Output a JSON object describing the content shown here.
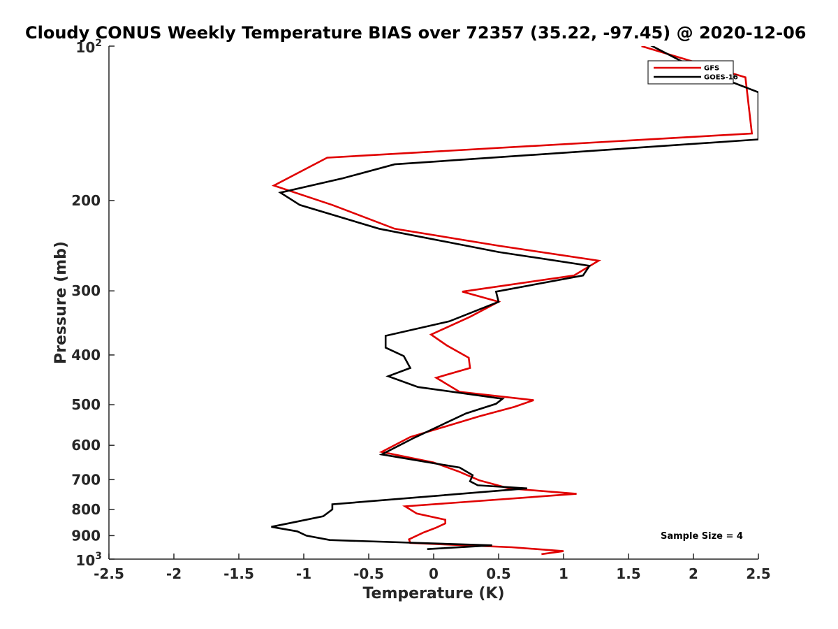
{
  "chart_data": {
    "type": "line",
    "title": "Cloudy CONUS Weekly Temperature BIAS over 72357 (35.22, -97.45) @ 2020-12-06",
    "xlabel": "Temperature (K)",
    "ylabel": "Pressure (mb)",
    "xlim": [
      -2.5,
      2.5
    ],
    "ylim": [
      100,
      1000
    ],
    "y_scale": "log",
    "y_reversed": true,
    "x_ticks": [
      "-2.5",
      "-2",
      "-1.5",
      "-1",
      "-0.5",
      "0",
      "0.5",
      "1",
      "1.5",
      "2",
      "2.5"
    ],
    "x_tick_values": [
      -2.5,
      -2,
      -1.5,
      -1,
      -0.5,
      0,
      0.5,
      1,
      1.5,
      2,
      2.5
    ],
    "y_ticks": [
      {
        "value": 200,
        "label": "200"
      },
      {
        "value": 300,
        "label": "300"
      },
      {
        "value": 400,
        "label": "400"
      },
      {
        "value": 500,
        "label": "500"
      },
      {
        "value": 600,
        "label": "600"
      },
      {
        "value": 700,
        "label": "700"
      },
      {
        "value": 800,
        "label": "800"
      },
      {
        "value": 900,
        "label": "900"
      }
    ],
    "y_pow_ticks": [
      {
        "value": 100,
        "base": "10",
        "exp": "2"
      },
      {
        "value": 1000,
        "base": "10",
        "exp": "3"
      }
    ],
    "grid": false,
    "legend_position": "top-right",
    "annotation": "Sample Size = 4",
    "series": [
      {
        "name": "GFS",
        "color": "#e00000",
        "points": [
          [
            1.6,
            100
          ],
          [
            2.4,
            115
          ],
          [
            2.45,
            148
          ],
          [
            -0.82,
            165
          ],
          [
            -1.23,
            187
          ],
          [
            -0.78,
            204
          ],
          [
            -0.3,
            227
          ],
          [
            0.5,
            245
          ],
          [
            1.27,
            262
          ],
          [
            1.08,
            280
          ],
          [
            0.22,
            301
          ],
          [
            0.5,
            315
          ],
          [
            0.28,
            337
          ],
          [
            -0.02,
            365
          ],
          [
            0.1,
            383
          ],
          [
            0.27,
            405
          ],
          [
            0.28,
            424
          ],
          [
            0.02,
            443
          ],
          [
            0.2,
            472
          ],
          [
            0.77,
            490
          ],
          [
            0.62,
            505
          ],
          [
            0.35,
            527
          ],
          [
            -0.18,
            578
          ],
          [
            -0.4,
            618
          ],
          [
            0.0,
            648
          ],
          [
            0.2,
            676
          ],
          [
            0.35,
            702
          ],
          [
            0.58,
            728
          ],
          [
            1.1,
            746
          ],
          [
            -0.22,
            789
          ],
          [
            -0.13,
            815
          ],
          [
            0.09,
            838
          ],
          [
            0.09,
            852
          ],
          [
            0.02,
            868
          ],
          [
            -0.08,
            888
          ],
          [
            -0.19,
            915
          ],
          [
            -0.18,
            930
          ],
          [
            0.6,
            948
          ],
          [
            1.0,
            965
          ],
          [
            0.83,
            978
          ]
        ]
      },
      {
        "name": "GOES-16",
        "color": "#000000",
        "points": [
          [
            1.65,
            99
          ],
          [
            2.0,
            110
          ],
          [
            2.5,
            123
          ],
          [
            2.5,
            152
          ],
          [
            -0.3,
            170
          ],
          [
            -0.7,
            181
          ],
          [
            -1.18,
            193
          ],
          [
            -1.03,
            204
          ],
          [
            -0.42,
            227
          ],
          [
            0.5,
            252
          ],
          [
            1.2,
            268
          ],
          [
            1.15,
            280
          ],
          [
            0.48,
            301
          ],
          [
            0.5,
            315
          ],
          [
            0.12,
            344
          ],
          [
            -0.37,
            367
          ],
          [
            -0.37,
            387
          ],
          [
            -0.23,
            402
          ],
          [
            -0.18,
            424
          ],
          [
            -0.35,
            440
          ],
          [
            -0.12,
            462
          ],
          [
            0.53,
            487
          ],
          [
            0.48,
            498
          ],
          [
            0.25,
            520
          ],
          [
            -0.15,
            580
          ],
          [
            -0.4,
            625
          ],
          [
            0.2,
            663
          ],
          [
            0.3,
            686
          ],
          [
            0.28,
            705
          ],
          [
            0.34,
            718
          ],
          [
            0.72,
            728
          ],
          [
            -0.78,
            782
          ],
          [
            -0.78,
            800
          ],
          [
            -0.85,
            825
          ],
          [
            -1.1,
            850
          ],
          [
            -1.25,
            865
          ],
          [
            -1.05,
            883
          ],
          [
            -0.98,
            900
          ],
          [
            -0.8,
            918
          ],
          [
            0.45,
            940
          ],
          [
            -0.05,
            956
          ]
        ]
      }
    ]
  }
}
